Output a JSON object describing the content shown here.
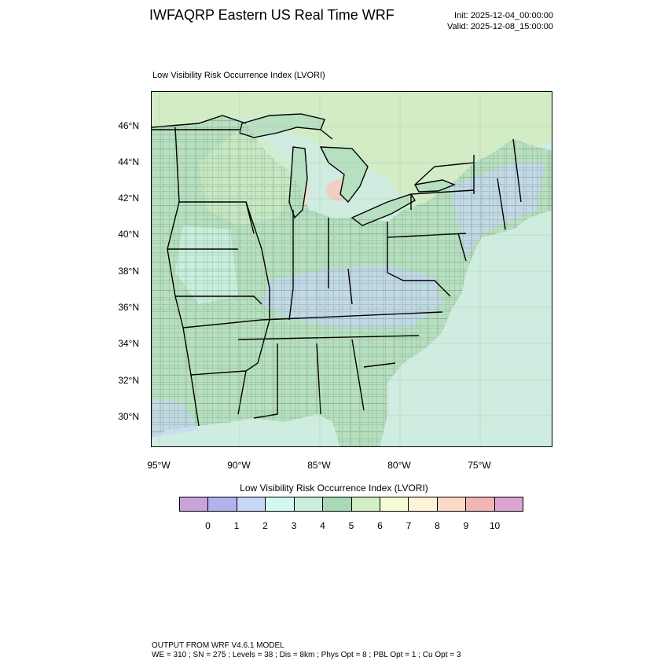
{
  "header": {
    "title": "IWFAQRP Eastern US Real Time WRF",
    "init": "Init: 2025-12-04_00:00:00",
    "valid": "Valid: 2025-12-08_15:00:00"
  },
  "plot": {
    "title": "Low Visibility Risk Occurrence Index   (LVORI)"
  },
  "axes": {
    "lat_labels": [
      "46°N",
      "44°N",
      "42°N",
      "40°N",
      "38°N",
      "36°N",
      "34°N",
      "32°N",
      "30°N"
    ],
    "lon_labels": [
      "95°W",
      "90°W",
      "85°W",
      "80°W",
      "75°W"
    ]
  },
  "legend": {
    "title": "Low Visibility Risk Occurrence Index  (LVORI)",
    "ticks": [
      "0",
      "1",
      "2",
      "3",
      "4",
      "5",
      "6",
      "7",
      "8",
      "9",
      "10"
    ],
    "colors": [
      "#c9a3d9",
      "#b1b3ee",
      "#c8d6fa",
      "#d3f8f0",
      "#c9eedc",
      "#a8d8b8",
      "#d0efc7",
      "#f4fcd6",
      "#fdf3d8",
      "#fcd8c7",
      "#f2b5b5",
      "#dca6d1"
    ]
  },
  "map": {
    "land_color": "#b7e0c1",
    "water_color": "#cfece0",
    "lake_color": "#b7e0c1"
  },
  "footer": {
    "line1": "OUTPUT FROM WRF V4.6.1 MODEL",
    "line2": "WE = 310 ; SN = 275 ; Levels = 38 ; Dis = 8km ; Phys Opt = 8 ; PBL Opt = 1 ; Cu Opt = 3"
  }
}
